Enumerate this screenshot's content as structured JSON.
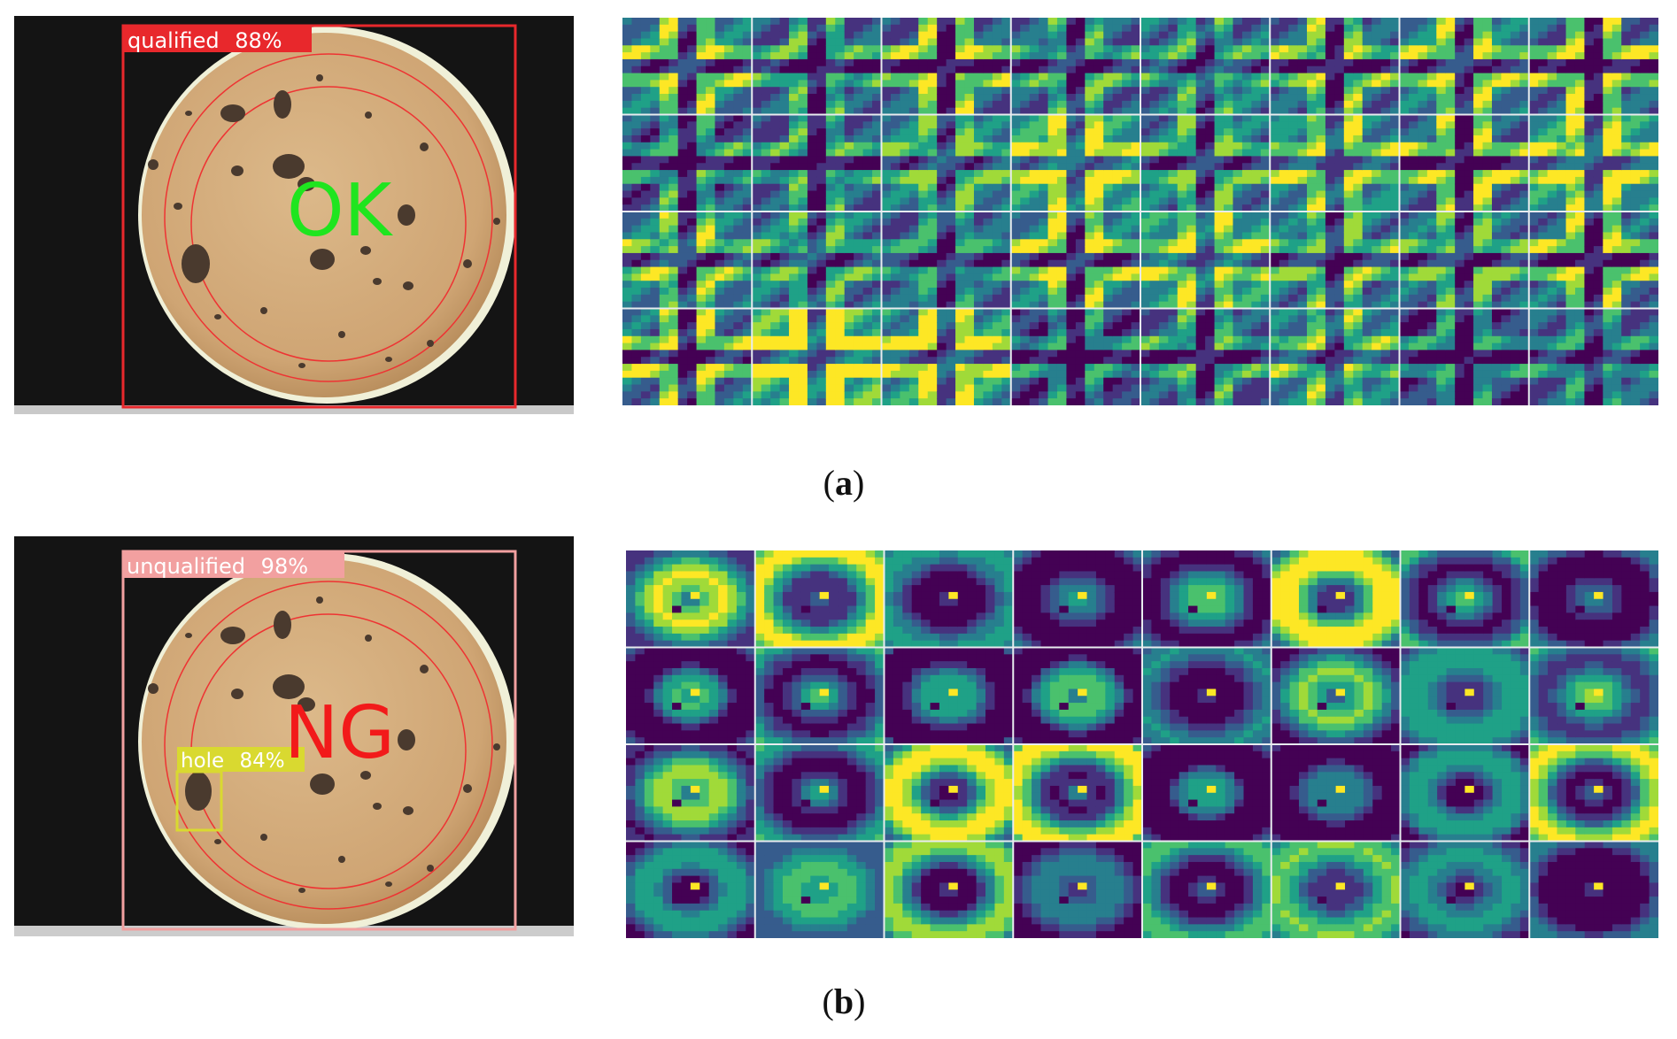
{
  "figure": {
    "panels": [
      {
        "id": "a",
        "caption_letter": "a",
        "verdict_text": "OK",
        "verdict_color": "#1fe51f",
        "box_color": "#e8282c",
        "detections": [
          {
            "label": "qualified",
            "confidence": "88%"
          }
        ],
        "feature_map_grid": {
          "rows": 4,
          "cols": 8,
          "colormap": "viridis"
        }
      },
      {
        "id": "b",
        "caption_letter": "b",
        "verdict_text": "NG",
        "verdict_color": "#f21a1a",
        "box_color": "#f2a0a0",
        "detections": [
          {
            "label": "unqualified",
            "confidence": "98%"
          },
          {
            "label": "hole",
            "confidence": "84%",
            "color": "#d9d930"
          }
        ],
        "feature_map_grid": {
          "rows": 4,
          "cols": 8,
          "colormap": "viridis"
        }
      }
    ],
    "colors": {
      "background": "#ffffff",
      "photo_background": "#141414",
      "disc": "#d7b07e",
      "grid_line": "#e8ecef"
    }
  }
}
